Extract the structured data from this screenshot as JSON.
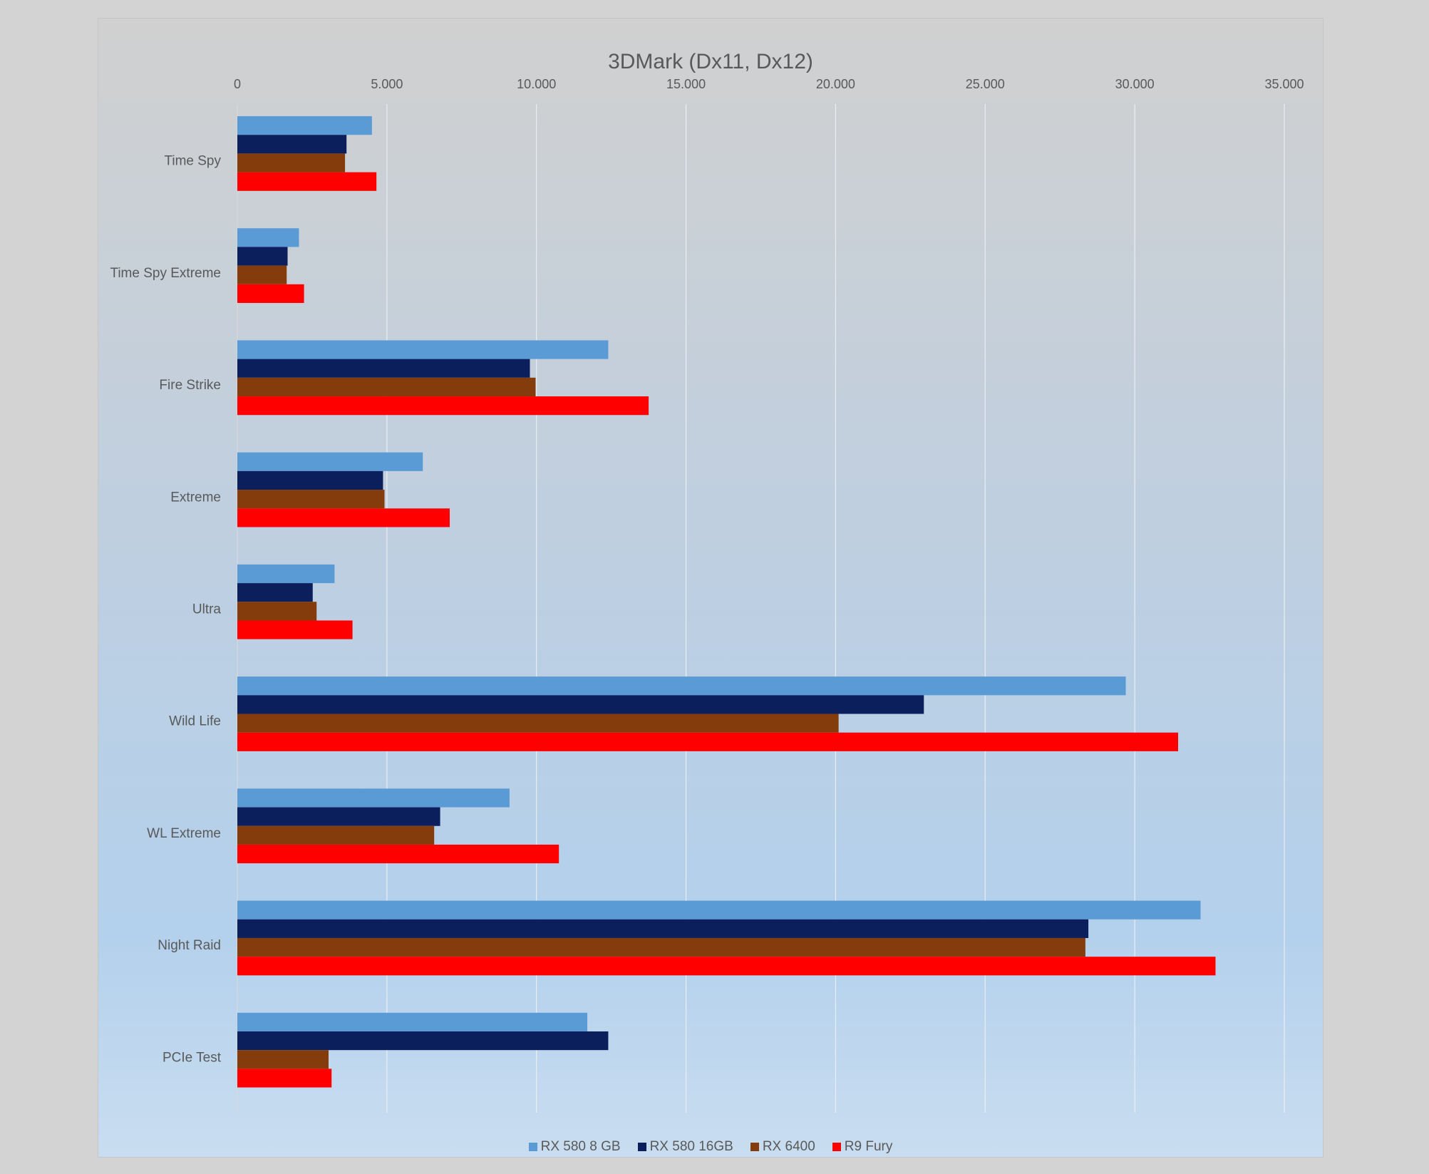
{
  "chart_data": {
    "type": "bar",
    "orientation": "horizontal",
    "title": "3DMark (Dx11, Dx12)",
    "xlabel": "",
    "ylabel": "",
    "xlim": [
      0,
      35000
    ],
    "x_ticks": [
      0,
      5000,
      10000,
      15000,
      20000,
      25000,
      30000,
      35000
    ],
    "x_tick_labels": [
      "0",
      "5.000",
      "10.000",
      "15.000",
      "20.000",
      "25.000",
      "30.000",
      "35.000"
    ],
    "grid": true,
    "legend_position": "bottom",
    "categories": [
      "Time Spy",
      "Time Spy Extreme",
      "Fire Strike",
      "Extreme",
      "Ultra",
      "Wild Life",
      "WL Extreme",
      "Night Raid",
      "PCIe Test"
    ],
    "series": [
      {
        "name": "RX 580 8 GB",
        "color": "#5b9bd5",
        "values": [
          4500,
          2060,
          12400,
          6200,
          3250,
          29700,
          9100,
          32200,
          11700
        ]
      },
      {
        "name": "RX 580 16GB",
        "color": "#0b1f5c",
        "values": [
          3650,
          1680,
          9780,
          4870,
          2520,
          22950,
          6780,
          28450,
          12400
        ]
      },
      {
        "name": "RX 6400",
        "color": "#843c0c",
        "values": [
          3600,
          1650,
          9970,
          4920,
          2650,
          20100,
          6580,
          28350,
          3050
        ]
      },
      {
        "name": "R9 Fury",
        "color": "#ff0000",
        "values": [
          4650,
          2230,
          13750,
          7100,
          3850,
          31450,
          10750,
          32700,
          3150
        ]
      }
    ]
  }
}
